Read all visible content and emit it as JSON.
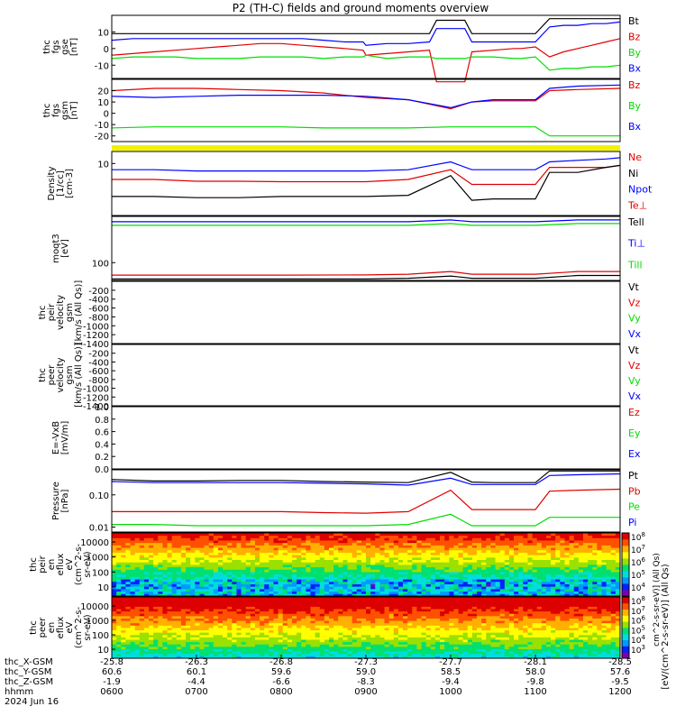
{
  "title": "P2 (TH-C) fields and ground moments overview",
  "date": "2024 Jun 16",
  "colors": {
    "black": "#000000",
    "red": "#e00000",
    "green": "#00dd00",
    "blue": "#0000ff",
    "yellow": "#f2f200"
  },
  "chart_data": [
    {
      "type": "line",
      "ylabel": "thc\nfgs\ngse\n[nT]",
      "ylim": [
        -18,
        20
      ],
      "yticks": [
        "10",
        "0",
        "-10"
      ],
      "legend": [
        {
          "label": "Bt",
          "color": "black"
        },
        {
          "label": "Bz",
          "color": "red"
        },
        {
          "label": "By",
          "color": "green"
        },
        {
          "label": "Bx",
          "color": "blue"
        }
      ],
      "x": [
        "0600",
        "0615",
        "0630",
        "0645",
        "0700",
        "0715",
        "0730",
        "0745",
        "0800",
        "0815",
        "0830",
        "0845",
        "0858",
        "0900",
        "0915",
        "0930",
        "0945",
        "0950",
        "1000",
        "1010",
        "1015",
        "1030",
        "1045",
        "1050",
        "1100",
        "1110",
        "1120",
        "1130",
        "1140",
        "1150",
        "1200"
      ],
      "series": [
        {
          "name": "Bt",
          "color": "black",
          "values": [
            9,
            9,
            9,
            9,
            9,
            9,
            9,
            9,
            9,
            9,
            9,
            9,
            9,
            9,
            9,
            9,
            9,
            17,
            17,
            17,
            9,
            9,
            9,
            9,
            9,
            18,
            18,
            18,
            18,
            18,
            18
          ]
        },
        {
          "name": "Bz",
          "color": "red",
          "values": [
            -4,
            -3,
            -2,
            -1,
            0,
            1,
            2,
            3,
            3,
            2,
            1,
            0,
            -1,
            -4,
            -3,
            -2,
            -1,
            -20,
            -20,
            -20,
            -2,
            -1,
            0,
            0,
            1,
            -5,
            -2,
            0,
            2,
            4,
            6
          ]
        },
        {
          "name": "By",
          "color": "green",
          "values": [
            -6,
            -5,
            -5,
            -5,
            -6,
            -6,
            -6,
            -5,
            -5,
            -5,
            -6,
            -5,
            -5,
            -4,
            -6,
            -5,
            -5,
            -6,
            -6,
            -6,
            -5,
            -5,
            -6,
            -6,
            -5,
            -13,
            -12,
            -12,
            -11,
            -11,
            -10
          ]
        },
        {
          "name": "Bx",
          "color": "blue",
          "values": [
            5,
            6,
            6,
            6,
            6,
            6,
            6,
            6,
            6,
            6,
            5,
            4,
            4,
            2,
            3,
            3,
            4,
            12,
            12,
            12,
            4,
            4,
            4,
            4,
            4,
            13,
            14,
            14,
            15,
            15,
            16
          ]
        }
      ]
    },
    {
      "type": "line",
      "ylabel": "thc\nfgs\ngsm\n[nT]",
      "ylim": [
        -25,
        30
      ],
      "yticks": [
        "20",
        "10",
        "0",
        "-10",
        "-20"
      ],
      "legend": [
        {
          "label": "Bz",
          "color": "red"
        },
        {
          "label": "By",
          "color": "green"
        },
        {
          "label": "Bx",
          "color": "blue"
        }
      ],
      "x": [
        "0600",
        "0630",
        "0700",
        "0730",
        "0800",
        "0830",
        "0900",
        "0930",
        "1000",
        "1015",
        "1030",
        "1100",
        "1110",
        "1130",
        "1200"
      ],
      "series": [
        {
          "name": "Bz",
          "color": "red",
          "values": [
            20,
            22,
            22,
            21,
            20,
            18,
            14,
            12,
            4,
            10,
            11,
            11,
            20,
            21,
            22
          ]
        },
        {
          "name": "By",
          "color": "green",
          "values": [
            -13,
            -12,
            -12,
            -12,
            -12,
            -13,
            -13,
            -13,
            -12,
            -12,
            -12,
            -12,
            -20,
            -20,
            -20
          ]
        },
        {
          "name": "Bx",
          "color": "blue",
          "values": [
            15,
            14,
            15,
            16,
            16,
            16,
            15,
            12,
            5,
            10,
            12,
            12,
            22,
            24,
            25
          ]
        }
      ]
    },
    {
      "type": "line",
      "ylabel": "Density\n[1/cc]\n[cm-3]",
      "ylim": [
        0.5,
        20
      ],
      "yscale": "log",
      "yticks": [
        "10"
      ],
      "legend": [
        {
          "label": "Ne",
          "color": "red"
        },
        {
          "label": "Ni",
          "color": "black"
        },
        {
          "label": "Npot",
          "color": "blue"
        },
        {
          "label": "Te⊥",
          "color": "red"
        }
      ],
      "x": [
        "0600",
        "0630",
        "0700",
        "0730",
        "0800",
        "0830",
        "0900",
        "0930",
        "1000",
        "1015",
        "1030",
        "1100",
        "1110",
        "1130",
        "1150",
        "1200"
      ],
      "series": [
        {
          "name": "Ne",
          "color": "red",
          "values": [
            4,
            4,
            3.6,
            3.6,
            3.5,
            3.5,
            3.5,
            4,
            7,
            3,
            3,
            3,
            8,
            8,
            8,
            9
          ]
        },
        {
          "name": "Ni",
          "color": "black",
          "values": [
            1.5,
            1.5,
            1.4,
            1.4,
            1.5,
            1.5,
            1.5,
            1.6,
            5,
            1.2,
            1.3,
            1.3,
            6,
            6,
            8,
            9
          ]
        },
        {
          "name": "Npot",
          "color": "blue",
          "values": [
            7,
            7,
            6.5,
            6.5,
            6.5,
            6.5,
            6.5,
            7,
            11,
            7,
            7,
            7,
            11,
            12,
            13,
            14
          ]
        }
      ]
    },
    {
      "type": "line",
      "ylabel": "moqt3\n[eV]",
      "ylim": [
        0,
        360
      ],
      "yticks": [
        "100"
      ],
      "legend": [
        {
          "label": "Tell",
          "color": "black"
        },
        {
          "label": "Ti⊥",
          "color": "blue"
        },
        {
          "label": "Till",
          "color": "green"
        }
      ],
      "x": [
        "0600",
        "0700",
        "0800",
        "0900",
        "0930",
        "1000",
        "1015",
        "1030",
        "1100",
        "1130",
        "1200"
      ],
      "series": [
        {
          "name": "Te⊥",
          "color": "red",
          "values": [
            30,
            30,
            30,
            31,
            35,
            50,
            35,
            35,
            35,
            50,
            50
          ]
        },
        {
          "name": "Tell",
          "color": "black",
          "values": [
            8,
            8,
            8,
            8,
            12,
            25,
            12,
            12,
            12,
            28,
            28
          ]
        },
        {
          "name": "Ti⊥",
          "color": "blue",
          "values": [
            330,
            330,
            330,
            330,
            330,
            340,
            330,
            330,
            330,
            340,
            340
          ]
        },
        {
          "name": "Till",
          "color": "green",
          "values": [
            310,
            310,
            310,
            310,
            310,
            320,
            310,
            310,
            310,
            320,
            320
          ]
        }
      ]
    },
    {
      "type": "line",
      "ylabel": "thc\npeir\nvelocity\ngsm\n[km/s (All Qs)]",
      "ylim": [
        -1400,
        0
      ],
      "yticks": [
        "-200",
        "-400",
        "-600",
        "-800",
        "-1000",
        "-1200",
        "-1400"
      ],
      "legend": [
        {
          "label": "Vt",
          "color": "black"
        },
        {
          "label": "Vz",
          "color": "red"
        },
        {
          "label": "Vy",
          "color": "green"
        },
        {
          "label": "Vx",
          "color": "blue"
        }
      ],
      "series": []
    },
    {
      "type": "line",
      "ylabel": "thc\npeer\nvelocity\ngsm\n[km/s (All Qs)]",
      "ylim": [
        -1400,
        0
      ],
      "yticks": [
        "-200",
        "-400",
        "-600",
        "-800",
        "-1000",
        "-1200",
        "-1400"
      ],
      "legend": [
        {
          "label": "Vt",
          "color": "black"
        },
        {
          "label": "Vz",
          "color": "red"
        },
        {
          "label": "Vy",
          "color": "green"
        },
        {
          "label": "Vx",
          "color": "blue"
        }
      ],
      "series": []
    },
    {
      "type": "line",
      "ylabel": "E=-VxB\n[mV/m]",
      "ylim": [
        0,
        1
      ],
      "yticks": [
        "1.0",
        "0.8",
        "0.6",
        "0.4",
        "0.2",
        "0.0"
      ],
      "legend": [
        {
          "label": "Ez",
          "color": "red"
        },
        {
          "label": "Ey",
          "color": "green"
        },
        {
          "label": "Ex",
          "color": "blue"
        }
      ],
      "series": []
    },
    {
      "type": "line",
      "ylabel": "Pressure\n[nPa]",
      "ylim": [
        0.007,
        0.6
      ],
      "yscale": "log",
      "yticks": [
        "0.10",
        "0.01"
      ],
      "legend": [
        {
          "label": "Pt",
          "color": "black"
        },
        {
          "label": "Pb",
          "color": "red"
        },
        {
          "label": "Pe",
          "color": "green"
        },
        {
          "label": "Pi",
          "color": "blue"
        }
      ],
      "x": [
        "0600",
        "0630",
        "0700",
        "0730",
        "0800",
        "0830",
        "0900",
        "0930",
        "1000",
        "1015",
        "1030",
        "1100",
        "1110",
        "1130",
        "1200"
      ],
      "series": [
        {
          "name": "Pt",
          "color": "black",
          "values": [
            0.3,
            0.27,
            0.27,
            0.28,
            0.28,
            0.26,
            0.25,
            0.24,
            0.5,
            0.25,
            0.24,
            0.24,
            0.55,
            0.55,
            0.55
          ]
        },
        {
          "name": "Pb",
          "color": "red",
          "values": [
            0.03,
            0.03,
            0.03,
            0.03,
            0.03,
            0.028,
            0.027,
            0.03,
            0.14,
            0.035,
            0.035,
            0.035,
            0.13,
            0.14,
            0.15
          ]
        },
        {
          "name": "Pe",
          "color": "green",
          "values": [
            0.012,
            0.012,
            0.011,
            0.011,
            0.011,
            0.011,
            0.011,
            0.012,
            0.025,
            0.011,
            0.011,
            0.011,
            0.02,
            0.02,
            0.02
          ]
        },
        {
          "name": "Pi",
          "color": "blue",
          "values": [
            0.26,
            0.24,
            0.24,
            0.24,
            0.24,
            0.23,
            0.22,
            0.2,
            0.33,
            0.21,
            0.21,
            0.21,
            0.4,
            0.42,
            0.45
          ]
        }
      ]
    },
    {
      "type": "heatmap",
      "ylabel": "thc\npeir\nen\neflux\neV\n(cm^2-s-\nsr-eV)",
      "yscale": "log",
      "yticks": [
        "10000",
        "1000",
        "100",
        "10"
      ]
    },
    {
      "type": "heatmap",
      "ylabel": "thc\npeer\nen\neflux\neV\n(cm^2-s-\nsr-eV)",
      "yscale": "log",
      "yticks": [
        "10000",
        "1000",
        "100",
        "10"
      ]
    }
  ],
  "colorbars": [
    {
      "ticks": [
        "10^8",
        "10^7",
        "10^6",
        "10^5",
        "10^4"
      ]
    },
    {
      "ticks": [
        "10^8",
        "10^7",
        "10^6",
        "10^5",
        "10^4",
        "10^3"
      ]
    }
  ],
  "colorbar_label": "[eV/(cm^2-s-sr-eV)] (All Qs)",
  "colorbar_label2": "cm^2-s-sr-eV)] (All Qs)",
  "xaxis": {
    "row_labels": [
      "thc_X-GSM",
      "thc_Y-GSM",
      "thc_Z-GSM",
      "hhmm"
    ],
    "ticks": [
      {
        "x": "-25.8",
        "y": "60.6",
        "z": "-1.9",
        "t": "0600"
      },
      {
        "x": "-26.3",
        "y": "60.1",
        "z": "-4.4",
        "t": "0700"
      },
      {
        "x": "-26.8",
        "y": "59.6",
        "z": "-6.6",
        "t": "0800"
      },
      {
        "x": "-27.3",
        "y": "59.0",
        "z": "-8.3",
        "t": "0900"
      },
      {
        "x": "-27.7",
        "y": "58.5",
        "z": "-9.4",
        "t": "1000"
      },
      {
        "x": "-28.1",
        "y": "58.0",
        "z": "-9.8",
        "t": "1100"
      },
      {
        "x": "-28.5",
        "y": "57.6",
        "z": "-9.5",
        "t": "1200"
      }
    ]
  }
}
